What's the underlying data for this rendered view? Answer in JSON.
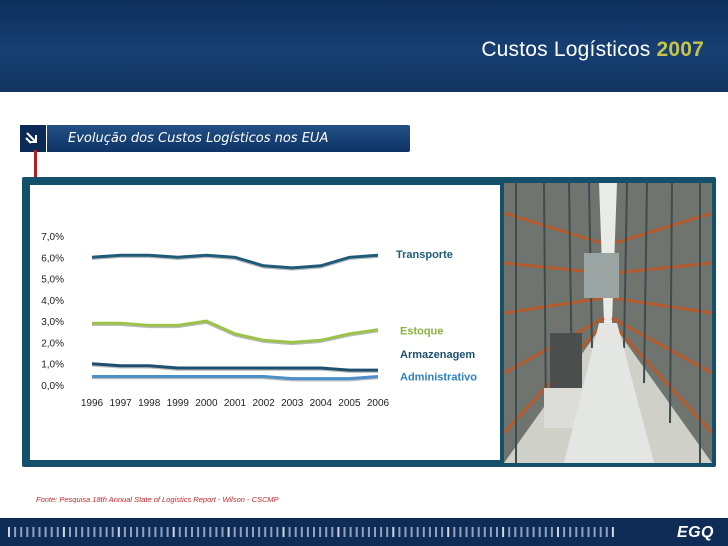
{
  "header": {
    "title": "Custos Logísticos",
    "year": "2007"
  },
  "subtitle": "Evolução dos Custos Logísticos nos EUA",
  "source": "Fonte: Pesquisa 18th Annual State of Logistics Report - Wilson - CSCMP",
  "footer": {
    "logo": "EGQ"
  },
  "colors": {
    "header_bg": "#123a6b",
    "year": "#c6c24a",
    "panel": "#15506a",
    "transporte": "#1f5c7a",
    "estoque": "#9dc24a",
    "armazenagem": "#1d4f6e",
    "administrativo": "#4b8fc8"
  },
  "chart_data": {
    "type": "line",
    "x": [
      "1996",
      "1997",
      "1998",
      "1999",
      "2000",
      "2001",
      "2002",
      "2003",
      "2004",
      "2005",
      "2006"
    ],
    "ylim": [
      0,
      7
    ],
    "yticks": [
      "0,0%",
      "1,0%",
      "2,0%",
      "3,0%",
      "4,0%",
      "5,0%",
      "6,0%",
      "7,0%"
    ],
    "series": [
      {
        "name": "Transporte",
        "color": "#1e5b78",
        "values": [
          6.0,
          6.1,
          6.1,
          6.0,
          6.1,
          6.0,
          5.6,
          5.5,
          5.6,
          6.0,
          6.1
        ]
      },
      {
        "name": "Estoque",
        "color": "#9dc24a",
        "values": [
          2.9,
          2.9,
          2.8,
          2.8,
          3.0,
          2.4,
          2.1,
          2.0,
          2.1,
          2.4,
          2.6
        ]
      },
      {
        "name": "Armazenagem",
        "color": "#1d4f6e",
        "values": [
          1.0,
          0.9,
          0.9,
          0.8,
          0.8,
          0.8,
          0.8,
          0.8,
          0.8,
          0.7,
          0.7
        ]
      },
      {
        "name": "Administrativo",
        "color": "#4b8fc8",
        "values": [
          0.4,
          0.4,
          0.4,
          0.4,
          0.4,
          0.4,
          0.4,
          0.3,
          0.3,
          0.3,
          0.4
        ]
      }
    ]
  }
}
